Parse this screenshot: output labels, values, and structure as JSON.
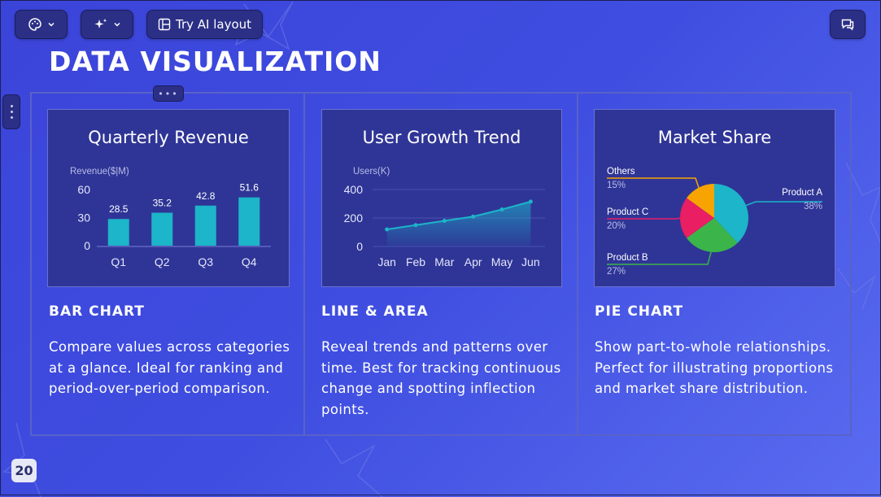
{
  "toolbar": {
    "theme_icon": "palette-icon",
    "ai_icon": "sparkles-icon",
    "ai_layout_label": "Try AI layout",
    "comment_icon": "comment-icon"
  },
  "slide": {
    "title": "DATA VISUALIZATION",
    "page_number": "20"
  },
  "cards": [
    {
      "heading": "BAR CHART",
      "description": "Compare values across categories at a glance. Ideal for ranking and period-over-period comparison."
    },
    {
      "heading": "LINE & AREA",
      "description": "Reveal trends and patterns over time. Best for tracking continuous change and spotting inflection points."
    },
    {
      "heading": "PIE CHART",
      "description": "Show part-to-whole relationships. Perfect for illustrating proportions and market share distribution."
    }
  ],
  "chart_data": [
    {
      "type": "bar",
      "title": "Quarterly Revenue",
      "ylabel": "Revenue($|M)",
      "categories": [
        "Q1",
        "Q2",
        "Q3",
        "Q4"
      ],
      "values": [
        28.5,
        35.2,
        42.8,
        51.6
      ],
      "yticks": [
        0,
        30,
        60
      ],
      "ylim": [
        0,
        60
      ],
      "color": "#1cb5c9"
    },
    {
      "type": "area",
      "title": "User Growth Trend",
      "ylabel": "Users(K)",
      "categories": [
        "Jan",
        "Feb",
        "Mar",
        "Apr",
        "May",
        "Jun"
      ],
      "values": [
        120,
        150,
        180,
        210,
        260,
        315
      ],
      "yticks": [
        0,
        200,
        400
      ],
      "ylim": [
        0,
        400
      ],
      "color": "#1cb5c9"
    },
    {
      "type": "pie",
      "title": "Market Share",
      "slices": [
        {
          "label": "Product A",
          "value": 38,
          "pct": "38%",
          "color": "#1cb5c9"
        },
        {
          "label": "Product B",
          "value": 27,
          "pct": "27%",
          "color": "#3bb54a"
        },
        {
          "label": "Product C",
          "value": 20,
          "pct": "20%",
          "color": "#e91e63"
        },
        {
          "label": "Others",
          "value": 15,
          "pct": "15%",
          "color": "#f7a400"
        }
      ]
    }
  ]
}
